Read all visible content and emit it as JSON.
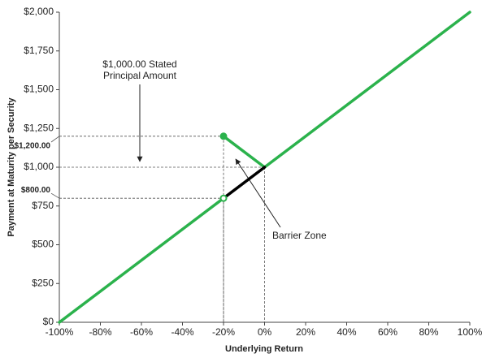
{
  "chart_data": {
    "type": "line",
    "x_label": "Underlying Return",
    "y_label": "Payment at Maturity per Security",
    "xlim": [
      -100,
      100
    ],
    "ylim": [
      0,
      2000
    ],
    "xticks": [
      {
        "value": -100,
        "label": "-100%"
      },
      {
        "value": -80,
        "label": "-80%"
      },
      {
        "value": -60,
        "label": "-60%"
      },
      {
        "value": -40,
        "label": "-40%"
      },
      {
        "value": -20,
        "label": "-20%"
      },
      {
        "value": 0,
        "label": "0%"
      },
      {
        "value": 20,
        "label": "20%"
      },
      {
        "value": 40,
        "label": "40%"
      },
      {
        "value": 60,
        "label": "60%"
      },
      {
        "value": 80,
        "label": "80%"
      },
      {
        "value": 100,
        "label": "100%"
      }
    ],
    "yticks": [
      {
        "value": 0,
        "label": "$0"
      },
      {
        "value": 250,
        "label": "$250"
      },
      {
        "value": 500,
        "label": "$500"
      },
      {
        "value": 750,
        "label": "$750"
      },
      {
        "value": 1000,
        "label": "$1,000"
      },
      {
        "value": 1250,
        "label": "$1,250"
      },
      {
        "value": 1500,
        "label": "$1,500"
      },
      {
        "value": 1750,
        "label": "$1,750"
      },
      {
        "value": 2000,
        "label": "$2,000"
      }
    ],
    "series": [
      {
        "color": "#2bb24c",
        "x": [
          -100,
          -20
        ],
        "values": [
          0,
          800
        ]
      },
      {
        "color": "#2bb24c",
        "x": [
          -20,
          0
        ],
        "values": [
          1200,
          1000
        ]
      },
      {
        "color": "#2bb24c",
        "x": [
          0,
          100
        ],
        "values": [
          1000,
          2000
        ]
      },
      {
        "color": "#000000",
        "x": [
          -20,
          0
        ],
        "values": [
          800,
          1000
        ]
      }
    ],
    "points": [
      {
        "x": -20,
        "y": 1200,
        "filled": true,
        "color": "#2bb24c"
      },
      {
        "x": -20,
        "y": 800,
        "filled": false,
        "color": "#2bb24c"
      }
    ],
    "reference_lines": [
      {
        "x": -20,
        "y": 1200,
        "label": "$1,200.00"
      },
      {
        "x": -20,
        "y": 800,
        "label": "$800.00"
      },
      {
        "x": 0,
        "y": 1000
      }
    ],
    "annotations": [
      {
        "lines": [
          "$1,000.00 Stated",
          "Principal Amount"
        ]
      },
      {
        "lines": [
          "Barrier Zone"
        ]
      }
    ]
  }
}
